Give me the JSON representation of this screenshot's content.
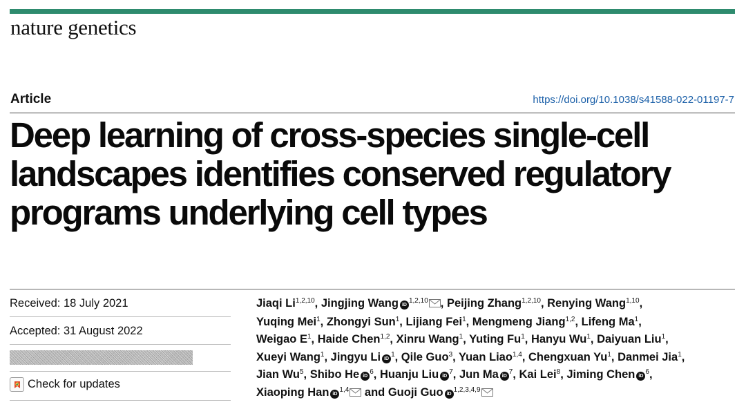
{
  "journal": "nature genetics",
  "article_type": "Article",
  "doi": "https://doi.org/10.1038/s41588-022-01197-7",
  "title_lines": [
    "Deep learning of cross-species single-cell",
    "landscapes identifies conserved regulatory",
    "programs underlying cell types"
  ],
  "received": "Received: 18 July 2021",
  "accepted": "Accepted: 31 August 2022",
  "check_updates": "Check for updates",
  "accent_color": "#2e8b6e",
  "link_color": "#1a5fa8",
  "authors": [
    [
      {
        "name": "Jiaqi Li",
        "sup": "1,2,10",
        "sep": ", "
      },
      {
        "name": "Jingjing Wang",
        "orcid": true,
        "sup": "1,2,10",
        "mail": true,
        "sep": ", "
      },
      {
        "name": "Peijing Zhang",
        "sup": "1,2,10",
        "sep": ", "
      },
      {
        "name": "Renying Wang",
        "sup": "1,10",
        "sep": ","
      }
    ],
    [
      {
        "name": "Yuqing Mei",
        "sup": "1",
        "sep": ", "
      },
      {
        "name": "Zhongyi Sun",
        "sup": "1",
        "sep": ", "
      },
      {
        "name": "Lijiang Fei",
        "sup": "1",
        "sep": ", "
      },
      {
        "name": "Mengmeng Jiang",
        "sup": "1,2",
        "sep": ", "
      },
      {
        "name": "Lifeng Ma",
        "sup": "1",
        "sep": ","
      }
    ],
    [
      {
        "name": "Weigao E",
        "sup": "1",
        "sep": ", "
      },
      {
        "name": "Haide Chen",
        "sup": "1,2",
        "sep": ", "
      },
      {
        "name": "Xinru Wang",
        "sup": "1",
        "sep": ", "
      },
      {
        "name": "Yuting Fu",
        "sup": "1",
        "sep": ", "
      },
      {
        "name": "Hanyu Wu",
        "sup": "1",
        "sep": ", "
      },
      {
        "name": "Daiyuan Liu",
        "sup": "1",
        "sep": ","
      }
    ],
    [
      {
        "name": "Xueyi Wang",
        "sup": "1",
        "sep": ", "
      },
      {
        "name": "Jingyu Li",
        "orcid": true,
        "sup": "1",
        "sep": ", "
      },
      {
        "name": "Qile Guo",
        "sup": "3",
        "sep": ", "
      },
      {
        "name": "Yuan Liao",
        "sup": "1,4",
        "sep": ", "
      },
      {
        "name": "Chengxuan Yu",
        "sup": "1",
        "sep": ", "
      },
      {
        "name": "Danmei Jia",
        "sup": "1",
        "sep": ","
      }
    ],
    [
      {
        "name": "Jian Wu",
        "sup": "5",
        "sep": ", "
      },
      {
        "name": "Shibo He",
        "orcid": true,
        "sup": "6",
        "sep": ", "
      },
      {
        "name": "Huanju Liu",
        "orcid": true,
        "sup": "7",
        "sep": ", "
      },
      {
        "name": "Jun Ma",
        "orcid": true,
        "sup": "7",
        "sep": ", "
      },
      {
        "name": "Kai Lei",
        "sup": "8",
        "sep": ", "
      },
      {
        "name": "Jiming Chen",
        "orcid": true,
        "sup": "6",
        "sep": ","
      }
    ],
    [
      {
        "name": "Xiaoping Han",
        "orcid": true,
        "sup": "1,4",
        "mail": true,
        "sep": " "
      },
      {
        "name": "and Guoji Guo",
        "orcid": true,
        "sup": "1,2,3,4,9",
        "mail": true,
        "sep": ""
      }
    ]
  ]
}
